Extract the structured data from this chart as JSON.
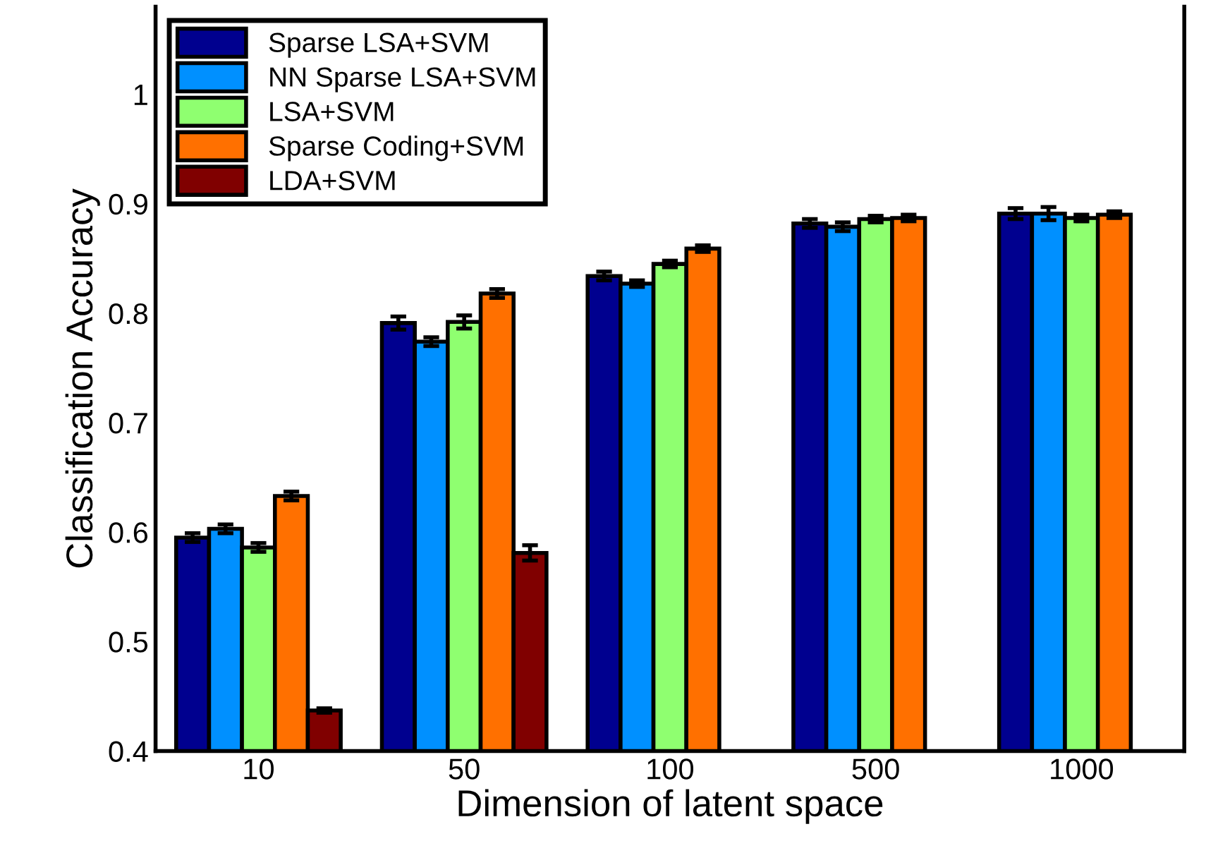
{
  "chart_data": {
    "type": "bar",
    "xlabel": "Dimension of latent space",
    "ylabel": "Classification Accuracy",
    "categories": [
      "10",
      "50",
      "100",
      "500",
      "1000"
    ],
    "series": [
      {
        "name": "Sparse LSA+SVM",
        "color": "#00008f",
        "values": [
          0.595,
          0.791,
          0.834,
          0.882,
          0.891
        ],
        "errors": [
          0.004,
          0.006,
          0.004,
          0.004,
          0.005
        ]
      },
      {
        "name": "NN Sparse LSA+SVM",
        "color": "#0090ff",
        "values": [
          0.603,
          0.774,
          0.827,
          0.879,
          0.891
        ],
        "errors": [
          0.004,
          0.004,
          0.003,
          0.004,
          0.006
        ]
      },
      {
        "name": "LSA+SVM",
        "color": "#8fff70",
        "values": [
          0.586,
          0.792,
          0.845,
          0.886,
          0.887
        ],
        "errors": [
          0.004,
          0.006,
          0.003,
          0.003,
          0.003
        ]
      },
      {
        "name": "Sparse Coding+SVM",
        "color": "#ff7000",
        "values": [
          0.633,
          0.818,
          0.859,
          0.887,
          0.89
        ],
        "errors": [
          0.004,
          0.004,
          0.003,
          0.003,
          0.003
        ]
      },
      {
        "name": "LDA+SVM",
        "color": "#800000",
        "values": [
          0.437,
          0.581,
          null,
          null,
          null
        ],
        "errors": [
          0.002,
          0.007,
          null,
          null,
          null
        ]
      }
    ],
    "ylim": [
      0.4,
      1.08
    ],
    "yticks": [
      0.4,
      0.5,
      0.6,
      0.7,
      0.8,
      0.9,
      1
    ],
    "grid": false,
    "legend": "top left"
  }
}
